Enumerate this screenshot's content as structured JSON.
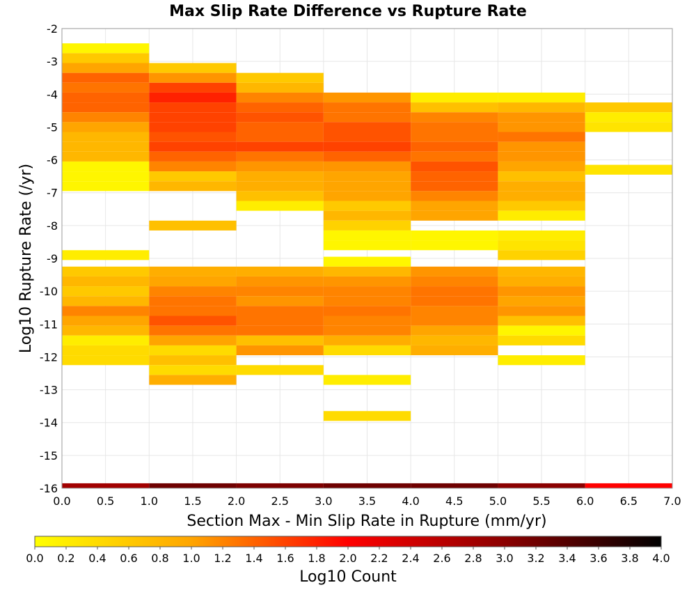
{
  "chart_data": {
    "type": "heatmap",
    "title": "Max Slip Rate Difference vs Rupture Rate",
    "xlabel": "Section Max - Min Slip Rate in Rupture (mm/yr)",
    "ylabel": "Log10 Rupture Rate (/yr)",
    "xlim": [
      0,
      7
    ],
    "ylim": [
      -16,
      -2
    ],
    "x_ticks": [
      "0.0",
      "0.5",
      "1.0",
      "1.5",
      "2.0",
      "2.5",
      "3.0",
      "3.5",
      "4.0",
      "4.5",
      "5.0",
      "5.5",
      "6.0",
      "6.5",
      "7.0"
    ],
    "y_ticks": [
      "-2",
      "-3",
      "-4",
      "-5",
      "-6",
      "-7",
      "-8",
      "-9",
      "-10",
      "-11",
      "-12",
      "-13",
      "-14",
      "-15",
      "-16"
    ],
    "grid": true,
    "bin_width_x": 1.0,
    "bin_height_y": 0.3,
    "colorbar": {
      "label": "Log10 Count",
      "range": [
        0,
        4
      ],
      "ticks": [
        "0.0",
        "0.2",
        "0.4",
        "0.6",
        "0.8",
        "1.0",
        "1.2",
        "1.4",
        "1.6",
        "1.8",
        "2.0",
        "2.2",
        "2.4",
        "2.6",
        "2.8",
        "3.0",
        "3.2",
        "3.4",
        "3.6",
        "3.8",
        "4.0"
      ],
      "stops": [
        {
          "v": 0.0,
          "color": "#ffff00"
        },
        {
          "v": 1.0,
          "color": "#ffa500"
        },
        {
          "v": 2.0,
          "color": "#ff0000"
        },
        {
          "v": 3.0,
          "color": "#8b0000"
        },
        {
          "v": 4.0,
          "color": "#000000"
        }
      ]
    },
    "cells": [
      {
        "x0": 0,
        "y0": -2.75,
        "v": 0.1
      },
      {
        "x0": 0,
        "y0": -3.05,
        "v": 0.6
      },
      {
        "x0": 0,
        "y0": -3.35,
        "v": 1.0
      },
      {
        "x0": 0,
        "y0": -3.65,
        "v": 1.4
      },
      {
        "x0": 0,
        "y0": -3.95,
        "v": 1.3
      },
      {
        "x0": 0,
        "y0": -4.25,
        "v": 1.4
      },
      {
        "x0": 0,
        "y0": -4.55,
        "v": 1.4
      },
      {
        "x0": 0,
        "y0": -4.85,
        "v": 1.2
      },
      {
        "x0": 0,
        "y0": -5.15,
        "v": 1.0
      },
      {
        "x0": 0,
        "y0": -5.45,
        "v": 0.8
      },
      {
        "x0": 0,
        "y0": -5.75,
        "v": 0.8
      },
      {
        "x0": 0,
        "y0": -6.05,
        "v": 0.8
      },
      {
        "x0": 0,
        "y0": -6.35,
        "v": 0.1
      },
      {
        "x0": 0,
        "y0": -6.65,
        "v": 0.1
      },
      {
        "x0": 0,
        "y0": -6.95,
        "v": 0.1
      },
      {
        "x0": 0,
        "y0": -9.05,
        "v": 0.2
      },
      {
        "x0": 0,
        "y0": -9.55,
        "v": 0.6
      },
      {
        "x0": 0,
        "y0": -9.85,
        "v": 0.8
      },
      {
        "x0": 0,
        "y0": -10.15,
        "v": 0.6
      },
      {
        "x0": 0,
        "y0": -10.45,
        "v": 0.8
      },
      {
        "x0": 0,
        "y0": -10.75,
        "v": 1.2
      },
      {
        "x0": 0,
        "y0": -11.05,
        "v": 1.0
      },
      {
        "x0": 0,
        "y0": -11.35,
        "v": 0.8
      },
      {
        "x0": 0,
        "y0": -11.65,
        "v": 0.2
      },
      {
        "x0": 0,
        "y0": -11.95,
        "v": 0.4
      },
      {
        "x0": 0,
        "y0": -12.25,
        "v": 0.4
      },
      {
        "x0": 1,
        "y0": -3.35,
        "v": 0.6
      },
      {
        "x0": 1,
        "y0": -3.65,
        "v": 1.1
      },
      {
        "x0": 1,
        "y0": -3.95,
        "v": 1.6
      },
      {
        "x0": 1,
        "y0": -4.25,
        "v": 1.8
      },
      {
        "x0": 1,
        "y0": -4.55,
        "v": 1.6
      },
      {
        "x0": 1,
        "y0": -4.85,
        "v": 1.6
      },
      {
        "x0": 1,
        "y0": -5.15,
        "v": 1.6
      },
      {
        "x0": 1,
        "y0": -5.45,
        "v": 1.5
      },
      {
        "x0": 1,
        "y0": -5.75,
        "v": 1.6
      },
      {
        "x0": 1,
        "y0": -6.05,
        "v": 1.4
      },
      {
        "x0": 1,
        "y0": -6.35,
        "v": 1.2
      },
      {
        "x0": 1,
        "y0": -6.65,
        "v": 0.6
      },
      {
        "x0": 1,
        "y0": -6.95,
        "v": 0.8
      },
      {
        "x0": 1,
        "y0": -8.15,
        "v": 0.7
      },
      {
        "x0": 1,
        "y0": -9.55,
        "v": 0.9
      },
      {
        "x0": 1,
        "y0": -9.85,
        "v": 1.0
      },
      {
        "x0": 1,
        "y0": -10.15,
        "v": 1.2
      },
      {
        "x0": 1,
        "y0": -10.45,
        "v": 1.3
      },
      {
        "x0": 1,
        "y0": -10.75,
        "v": 1.3
      },
      {
        "x0": 1,
        "y0": -11.05,
        "v": 1.5
      },
      {
        "x0": 1,
        "y0": -11.35,
        "v": 1.3
      },
      {
        "x0": 1,
        "y0": -11.65,
        "v": 1.0
      },
      {
        "x0": 1,
        "y0": -11.95,
        "v": 0.4
      },
      {
        "x0": 1,
        "y0": -12.25,
        "v": 0.7
      },
      {
        "x0": 1,
        "y0": -12.55,
        "v": 0.4
      },
      {
        "x0": 1,
        "y0": -12.85,
        "v": 0.9
      },
      {
        "x0": 2,
        "y0": -3.65,
        "v": 0.6
      },
      {
        "x0": 2,
        "y0": -3.95,
        "v": 0.8
      },
      {
        "x0": 2,
        "y0": -4.25,
        "v": 1.2
      },
      {
        "x0": 2,
        "y0": -4.55,
        "v": 1.4
      },
      {
        "x0": 2,
        "y0": -4.85,
        "v": 1.5
      },
      {
        "x0": 2,
        "y0": -5.15,
        "v": 1.4
      },
      {
        "x0": 2,
        "y0": -5.45,
        "v": 1.4
      },
      {
        "x0": 2,
        "y0": -5.75,
        "v": 1.6
      },
      {
        "x0": 2,
        "y0": -6.05,
        "v": 1.3
      },
      {
        "x0": 2,
        "y0": -6.35,
        "v": 1.1
      },
      {
        "x0": 2,
        "y0": -6.65,
        "v": 0.9
      },
      {
        "x0": 2,
        "y0": -6.95,
        "v": 0.9
      },
      {
        "x0": 2,
        "y0": -7.25,
        "v": 0.7
      },
      {
        "x0": 2,
        "y0": -7.55,
        "v": 0.2
      },
      {
        "x0": 2,
        "y0": -9.55,
        "v": 0.9
      },
      {
        "x0": 2,
        "y0": -9.85,
        "v": 1.1
      },
      {
        "x0": 2,
        "y0": -10.15,
        "v": 1.2
      },
      {
        "x0": 2,
        "y0": -10.45,
        "v": 1.1
      },
      {
        "x0": 2,
        "y0": -10.75,
        "v": 1.3
      },
      {
        "x0": 2,
        "y0": -11.05,
        "v": 1.3
      },
      {
        "x0": 2,
        "y0": -11.35,
        "v": 1.3
      },
      {
        "x0": 2,
        "y0": -11.65,
        "v": 0.7
      },
      {
        "x0": 2,
        "y0": -11.95,
        "v": 1.1
      },
      {
        "x0": 2,
        "y0": -12.55,
        "v": 0.4
      },
      {
        "x0": 3,
        "y0": -4.25,
        "v": 1.1
      },
      {
        "x0": 3,
        "y0": -4.55,
        "v": 1.3
      },
      {
        "x0": 3,
        "y0": -4.85,
        "v": 1.3
      },
      {
        "x0": 3,
        "y0": -5.15,
        "v": 1.5
      },
      {
        "x0": 3,
        "y0": -5.45,
        "v": 1.5
      },
      {
        "x0": 3,
        "y0": -5.75,
        "v": 1.6
      },
      {
        "x0": 3,
        "y0": -6.05,
        "v": 1.4
      },
      {
        "x0": 3,
        "y0": -6.35,
        "v": 1.1
      },
      {
        "x0": 3,
        "y0": -6.65,
        "v": 1.0
      },
      {
        "x0": 3,
        "y0": -6.95,
        "v": 1.0
      },
      {
        "x0": 3,
        "y0": -7.25,
        "v": 1.0
      },
      {
        "x0": 3,
        "y0": -7.55,
        "v": 0.6
      },
      {
        "x0": 3,
        "y0": -7.85,
        "v": 0.8
      },
      {
        "x0": 3,
        "y0": -8.15,
        "v": 0.5
      },
      {
        "x0": 3,
        "y0": -8.45,
        "v": 0.1
      },
      {
        "x0": 3,
        "y0": -8.75,
        "v": 0.1
      },
      {
        "x0": 3,
        "y0": -9.25,
        "v": 0.1
      },
      {
        "x0": 3,
        "y0": -9.55,
        "v": 0.8
      },
      {
        "x0": 3,
        "y0": -9.85,
        "v": 1.1
      },
      {
        "x0": 3,
        "y0": -10.15,
        "v": 1.2
      },
      {
        "x0": 3,
        "y0": -10.45,
        "v": 1.2
      },
      {
        "x0": 3,
        "y0": -10.75,
        "v": 1.3
      },
      {
        "x0": 3,
        "y0": -11.05,
        "v": 1.2
      },
      {
        "x0": 3,
        "y0": -11.35,
        "v": 1.2
      },
      {
        "x0": 3,
        "y0": -11.65,
        "v": 0.9
      },
      {
        "x0": 3,
        "y0": -11.95,
        "v": 0.4
      },
      {
        "x0": 3,
        "y0": -12.85,
        "v": 0.2
      },
      {
        "x0": 3,
        "y0": -13.95,
        "v": 0.4
      },
      {
        "x0": 4,
        "y0": -4.25,
        "v": 0.2
      },
      {
        "x0": 4,
        "y0": -4.55,
        "v": 0.7
      },
      {
        "x0": 4,
        "y0": -4.85,
        "v": 1.2
      },
      {
        "x0": 4,
        "y0": -5.15,
        "v": 1.3
      },
      {
        "x0": 4,
        "y0": -5.45,
        "v": 1.3
      },
      {
        "x0": 4,
        "y0": -5.75,
        "v": 1.4
      },
      {
        "x0": 4,
        "y0": -6.05,
        "v": 1.3
      },
      {
        "x0": 4,
        "y0": -6.35,
        "v": 1.5
      },
      {
        "x0": 4,
        "y0": -6.65,
        "v": 1.4
      },
      {
        "x0": 4,
        "y0": -6.95,
        "v": 1.4
      },
      {
        "x0": 4,
        "y0": -7.25,
        "v": 1.2
      },
      {
        "x0": 4,
        "y0": -7.55,
        "v": 1.0
      },
      {
        "x0": 4,
        "y0": -7.85,
        "v": 1.0
      },
      {
        "x0": 4,
        "y0": -8.45,
        "v": 0.1
      },
      {
        "x0": 4,
        "y0": -8.75,
        "v": 0.1
      },
      {
        "x0": 4,
        "y0": -9.55,
        "v": 1.1
      },
      {
        "x0": 4,
        "y0": -9.85,
        "v": 1.2
      },
      {
        "x0": 4,
        "y0": -10.15,
        "v": 1.3
      },
      {
        "x0": 4,
        "y0": -10.45,
        "v": 1.3
      },
      {
        "x0": 4,
        "y0": -10.75,
        "v": 1.2
      },
      {
        "x0": 4,
        "y0": -11.05,
        "v": 1.2
      },
      {
        "x0": 4,
        "y0": -11.35,
        "v": 1.0
      },
      {
        "x0": 4,
        "y0": -11.65,
        "v": 0.8
      },
      {
        "x0": 4,
        "y0": -11.95,
        "v": 0.9
      },
      {
        "x0": 5,
        "y0": -4.25,
        "v": 0.2
      },
      {
        "x0": 5,
        "y0": -4.55,
        "v": 0.8
      },
      {
        "x0": 5,
        "y0": -4.85,
        "v": 1.1
      },
      {
        "x0": 5,
        "y0": -5.15,
        "v": 1.1
      },
      {
        "x0": 5,
        "y0": -5.45,
        "v": 1.3
      },
      {
        "x0": 5,
        "y0": -5.75,
        "v": 1.1
      },
      {
        "x0": 5,
        "y0": -6.05,
        "v": 1.1
      },
      {
        "x0": 5,
        "y0": -6.35,
        "v": 1.0
      },
      {
        "x0": 5,
        "y0": -6.65,
        "v": 0.7
      },
      {
        "x0": 5,
        "y0": -6.95,
        "v": 0.9
      },
      {
        "x0": 5,
        "y0": -7.25,
        "v": 0.9
      },
      {
        "x0": 5,
        "y0": -7.55,
        "v": 0.6
      },
      {
        "x0": 5,
        "y0": -7.85,
        "v": 0.2
      },
      {
        "x0": 5,
        "y0": -8.45,
        "v": 0.2
      },
      {
        "x0": 5,
        "y0": -8.75,
        "v": 0.3
      },
      {
        "x0": 5,
        "y0": -9.05,
        "v": 0.5
      },
      {
        "x0": 5,
        "y0": -9.55,
        "v": 0.8
      },
      {
        "x0": 5,
        "y0": -9.85,
        "v": 0.9
      },
      {
        "x0": 5,
        "y0": -10.15,
        "v": 1.1
      },
      {
        "x0": 5,
        "y0": -10.45,
        "v": 1.0
      },
      {
        "x0": 5,
        "y0": -10.75,
        "v": 1.1
      },
      {
        "x0": 5,
        "y0": -11.05,
        "v": 0.7
      },
      {
        "x0": 5,
        "y0": -11.35,
        "v": 0.1
      },
      {
        "x0": 5,
        "y0": -11.65,
        "v": 0.4
      },
      {
        "x0": 5,
        "y0": -12.25,
        "v": 0.2
      },
      {
        "x0": 6,
        "y0": -4.55,
        "v": 0.6
      },
      {
        "x0": 6,
        "y0": -4.85,
        "v": 0.2
      },
      {
        "x0": 6,
        "y0": -5.15,
        "v": 0.3
      },
      {
        "x0": 6,
        "y0": -6.45,
        "v": 0.3
      },
      {
        "x0": 0,
        "y0": -16.0,
        "h": 0.15,
        "v": 2.8
      },
      {
        "x0": 1,
        "y0": -16.0,
        "h": 0.15,
        "v": 3.2
      },
      {
        "x0": 2,
        "y0": -16.0,
        "h": 0.15,
        "v": 3.1
      },
      {
        "x0": 3,
        "y0": -16.0,
        "h": 0.15,
        "v": 3.2
      },
      {
        "x0": 4,
        "y0": -16.0,
        "h": 0.15,
        "v": 3.2
      },
      {
        "x0": 5,
        "y0": -16.0,
        "h": 0.15,
        "v": 3.0
      },
      {
        "x0": 6,
        "y0": -16.0,
        "h": 0.15,
        "v": 2.0
      }
    ]
  }
}
